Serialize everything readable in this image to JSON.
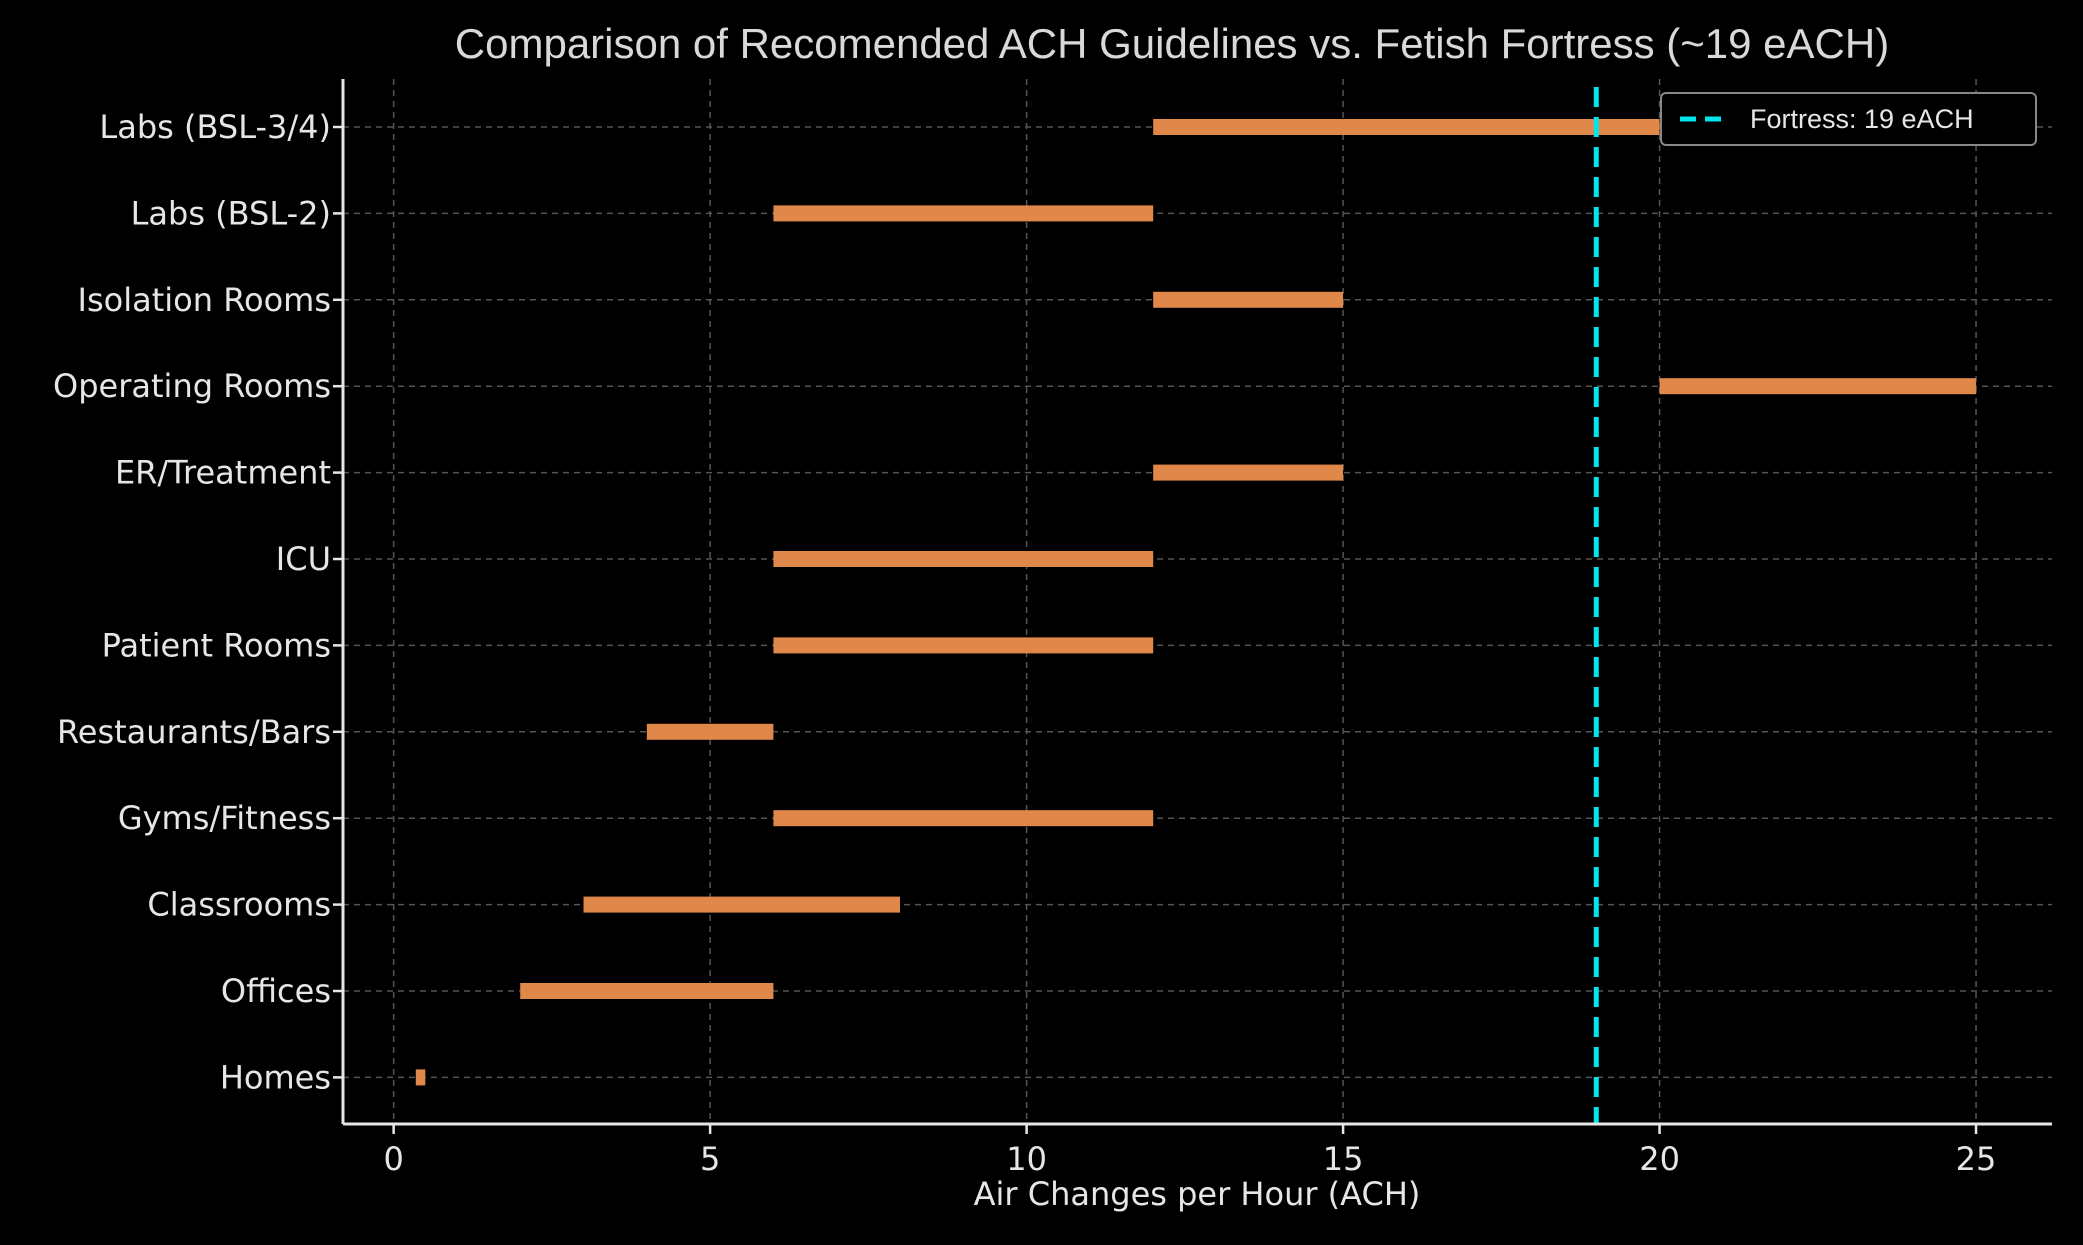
{
  "chart_data": {
    "type": "range-bar",
    "title": "Comparison of Recomended ACH Guidelines vs. Fetish Fortress (~19 eACH)",
    "xlabel": "Air Changes per Hour (ACH)",
    "ylabel": "",
    "xlim": [
      -0.8,
      26.2
    ],
    "xticks": [
      0,
      5,
      10,
      15,
      20,
      25
    ],
    "grid": true,
    "legend_position": "top-right",
    "categories": [
      "Homes",
      "Offices",
      "Classrooms",
      "Gyms/Fitness",
      "Restaurants/Bars",
      "Patient Rooms",
      "ICU",
      "ER/Treatment",
      "Operating Rooms",
      "Isolation Rooms",
      "Labs (BSL-2)",
      "Labs (BSL-3/4)"
    ],
    "ranges": [
      [
        0.35,
        0.5
      ],
      [
        2,
        6
      ],
      [
        3,
        8
      ],
      [
        6,
        12
      ],
      [
        4,
        6
      ],
      [
        6,
        12
      ],
      [
        6,
        12
      ],
      [
        12,
        15
      ],
      [
        20,
        25
      ],
      [
        12,
        15
      ],
      [
        6,
        12
      ],
      [
        12,
        20
      ]
    ],
    "reference_line": {
      "value": 19,
      "label": "Fortress: 19 eACH",
      "style": "dashed"
    },
    "colors": {
      "bar": "#e0884a",
      "reference": "#00e5ee",
      "background": "#000000",
      "grid": "#555555",
      "axis": "#e6e6e6"
    }
  }
}
